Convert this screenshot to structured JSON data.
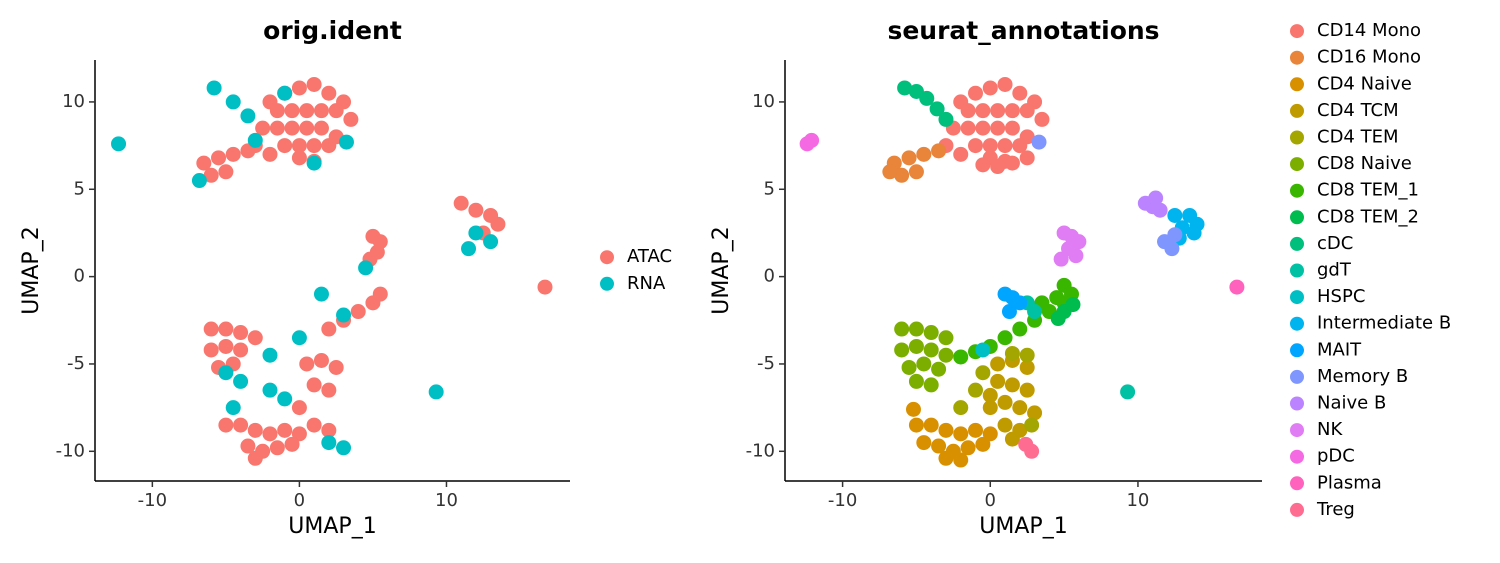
{
  "chart_data": [
    {
      "type": "scatter",
      "title": "orig.ident",
      "xlabel": "UMAP_1",
      "ylabel": "UMAP_2",
      "xlim": [
        -13.9,
        18.4
      ],
      "ylim": [
        -11.7,
        12.4
      ],
      "xticks": [
        -10,
        0,
        10
      ],
      "yticks": [
        -10,
        -5,
        0,
        5,
        10
      ],
      "legend": "right",
      "grid": false,
      "series": [
        {
          "name": "ATAC",
          "color": "#F8766D",
          "x": [
            -2,
            -1,
            0,
            1,
            2,
            3,
            -1.5,
            -0.5,
            0.5,
            1.5,
            2.5,
            3.5,
            -2.5,
            -1.5,
            -0.5,
            0.5,
            1.5,
            2.5,
            -1,
            0,
            1,
            2,
            -3,
            -2,
            0,
            1,
            -6.5,
            -5.5,
            -4.5,
            -6,
            -5,
            -3.5,
            11,
            12,
            13,
            13.5,
            12.5,
            5,
            5.5,
            5.3,
            4.8,
            2,
            3,
            4,
            5,
            5.5,
            -6,
            -5,
            -4,
            -3,
            -6,
            -5,
            -4,
            -5.5,
            -4.5,
            -5,
            -4,
            -3,
            -2,
            -1,
            0,
            -3.5,
            -2.5,
            -1.5,
            -0.5,
            -3,
            0.5,
            1.5,
            2.5,
            1,
            2,
            0,
            1,
            2,
            16.7
          ],
          "y": [
            10,
            10.5,
            10.8,
            11,
            10.5,
            10,
            9.5,
            9.5,
            9.5,
            9.5,
            9.5,
            9,
            8.5,
            8.5,
            8.5,
            8.5,
            8.5,
            8,
            7.5,
            7.5,
            7.5,
            7.5,
            7.5,
            7,
            6.8,
            6.6,
            6.5,
            6.8,
            7,
            5.8,
            6,
            7.2,
            4.2,
            3.8,
            3.5,
            3,
            2.5,
            2.3,
            2,
            1.4,
            1,
            -3,
            -2.5,
            -2,
            -1.5,
            -1,
            -3,
            -3,
            -3.2,
            -3.5,
            -4.2,
            -4,
            -4.2,
            -5.2,
            -5,
            -8.5,
            -8.5,
            -8.8,
            -9,
            -8.8,
            -9,
            -9.7,
            -10,
            -9.8,
            -9.6,
            -10.4,
            -5,
            -4.8,
            -5.2,
            -6.2,
            -6.5,
            -7.5,
            -8.5,
            -8.8,
            -0.6
          ]
        },
        {
          "name": "RNA",
          "color": "#00BFC4",
          "x": [
            -5.8,
            -4.5,
            -3.5,
            -6.8,
            -12.3,
            3.2,
            12,
            11.5,
            9.3,
            -4,
            -5,
            -2,
            0,
            3,
            4.5,
            -1,
            2,
            3,
            -3,
            1,
            -1,
            13,
            -2,
            -4.5,
            1.5
          ],
          "y": [
            10.8,
            10,
            9.2,
            5.5,
            7.6,
            7.7,
            2.5,
            1.6,
            -6.6,
            -6,
            -5.5,
            -4.5,
            -3.5,
            -2.2,
            0.5,
            -7,
            -9.5,
            -9.8,
            7.8,
            6.5,
            10.5,
            2,
            -6.5,
            -7.5,
            -1
          ]
        }
      ]
    },
    {
      "type": "scatter",
      "title": "seurat_annotations",
      "xlabel": "UMAP_1",
      "ylabel": "UMAP_2",
      "xlim": [
        -13.9,
        18.4
      ],
      "ylim": [
        -11.7,
        12.4
      ],
      "xticks": [
        -10,
        0,
        10
      ],
      "yticks": [
        -10,
        -5,
        0,
        5,
        10
      ],
      "legend": "right",
      "grid": false,
      "series": [
        {
          "name": "CD14 Mono",
          "color": "#F8766D",
          "x": [
            -2,
            -1,
            0,
            1,
            2,
            3,
            -1.5,
            -0.5,
            0.5,
            1.5,
            2.5,
            3.5,
            -2.5,
            -1.5,
            -0.5,
            0.5,
            1.5,
            2.5,
            -1,
            0,
            1,
            2,
            -3,
            -2,
            0,
            1,
            2.5,
            -0.5,
            0.5,
            1.5
          ],
          "y": [
            10,
            10.5,
            10.8,
            11,
            10.5,
            10,
            9.5,
            9.5,
            9.5,
            9.5,
            9.5,
            9,
            8.5,
            8.5,
            8.5,
            8.5,
            8.5,
            8,
            7.5,
            7.5,
            7.5,
            7.5,
            7.5,
            7,
            6.8,
            6.6,
            6.8,
            6.4,
            6.3,
            6.5
          ]
        },
        {
          "name": "CD16 Mono",
          "color": "#E8853A",
          "x": [
            -6.5,
            -5.5,
            -4.5,
            -6,
            -5,
            -3.5,
            -6.8
          ],
          "y": [
            6.5,
            6.8,
            7,
            5.8,
            6,
            7.2,
            6
          ]
        },
        {
          "name": "CD4 Naive",
          "color": "#D89000",
          "x": [
            -5,
            -4,
            -3,
            -2,
            -1,
            0,
            -4.5,
            -3.5,
            -2.5,
            -1.5,
            -0.5,
            -3,
            -2,
            -5.2
          ],
          "y": [
            -8.5,
            -8.5,
            -8.8,
            -9,
            -8.8,
            -9,
            -9.5,
            -9.7,
            -10,
            -9.8,
            -9.6,
            -10.4,
            -10.5,
            -7.6
          ]
        },
        {
          "name": "CD4 TCM",
          "color": "#C09B00",
          "x": [
            0.5,
            1.5,
            2.5,
            0.5,
            1.5,
            2.5,
            1,
            2,
            3,
            0,
            1,
            2,
            1.5,
            0
          ],
          "y": [
            -5,
            -4.8,
            -5.2,
            -6,
            -6.2,
            -6.5,
            -7.2,
            -7.5,
            -7.8,
            -7.5,
            -8.5,
            -8.8,
            -9.3,
            -6.8
          ]
        },
        {
          "name": "CD4 TEM",
          "color": "#A3A500",
          "x": [
            2.5,
            2.8,
            1.5,
            -1,
            -2,
            -0.5
          ],
          "y": [
            -4.5,
            -8.5,
            -4.4,
            -6.5,
            -7.5,
            -5.5
          ]
        },
        {
          "name": "CD8 Naive",
          "color": "#7CAE00",
          "x": [
            -6,
            -5,
            -4,
            -3,
            -6,
            -5,
            -4,
            -3,
            -5.5,
            -4.5,
            -3.5,
            -5,
            -4
          ],
          "y": [
            -3,
            -3,
            -3.2,
            -3.5,
            -4.2,
            -4,
            -4.2,
            -4.5,
            -5.2,
            -5,
            -5.3,
            -6,
            -6.2
          ]
        },
        {
          "name": "CD8 TEM_1",
          "color": "#39B600",
          "x": [
            -2,
            -1,
            0,
            1,
            2,
            3,
            4,
            4.5,
            5,
            5.5,
            3.5,
            5
          ],
          "y": [
            -4.6,
            -4.3,
            -4,
            -3.5,
            -3,
            -2.5,
            -2,
            -1.2,
            -1.5,
            -1,
            -1.5,
            -0.5
          ]
        },
        {
          "name": "CD8 TEM_2",
          "color": "#00BB4E",
          "x": [
            5,
            5.6,
            4.6
          ],
          "y": [
            -2,
            -1.6,
            -2.4
          ]
        },
        {
          "name": "cDC",
          "color": "#00BF7D",
          "x": [
            -5.8,
            -5,
            -4.3,
            -3.6,
            -3
          ],
          "y": [
            10.8,
            10.6,
            10.2,
            9.6,
            9
          ]
        },
        {
          "name": "gdT",
          "color": "#00C1A3",
          "x": [
            2.5,
            3,
            9.3
          ],
          "y": [
            -1.5,
            -2,
            -6.6
          ]
        },
        {
          "name": "HSPC",
          "color": "#00BFC4",
          "x": [
            -0.5
          ],
          "y": [
            -4.2
          ]
        },
        {
          "name": "Intermediate B",
          "color": "#00B4EF",
          "x": [
            12.5,
            13.5,
            14,
            13,
            12.8,
            13.8
          ],
          "y": [
            3.5,
            3.5,
            3,
            2.8,
            2.2,
            2.5
          ]
        },
        {
          "name": "MAIT",
          "color": "#00A5FF",
          "x": [
            1,
            1.5,
            2,
            1.3
          ],
          "y": [
            -1,
            -1.2,
            -1.5,
            -2
          ]
        },
        {
          "name": "Memory B",
          "color": "#7F96FF",
          "x": [
            11.8,
            12.3,
            3.3,
            12.5
          ],
          "y": [
            2,
            1.6,
            7.7,
            2.4
          ]
        },
        {
          "name": "Naive B",
          "color": "#BB83FF",
          "x": [
            10.5,
            11,
            11.5,
            11.2
          ],
          "y": [
            4.2,
            4,
            3.8,
            4.5
          ]
        },
        {
          "name": "NK",
          "color": "#E07CF4",
          "x": [
            5,
            5.5,
            6,
            5.3,
            5.8,
            4.8
          ],
          "y": [
            2.5,
            2.3,
            2,
            1.6,
            1.2,
            1
          ]
        },
        {
          "name": "pDC",
          "color": "#F569E3",
          "x": [
            -12.4,
            -12.1
          ],
          "y": [
            7.6,
            7.8
          ]
        },
        {
          "name": "Plasma",
          "color": "#FF62BC",
          "x": [
            16.7
          ],
          "y": [
            -0.6
          ]
        },
        {
          "name": "Treg",
          "color": "#FF6C91",
          "x": [
            2.4,
            2.8
          ],
          "y": [
            -9.6,
            -10
          ]
        }
      ]
    }
  ]
}
